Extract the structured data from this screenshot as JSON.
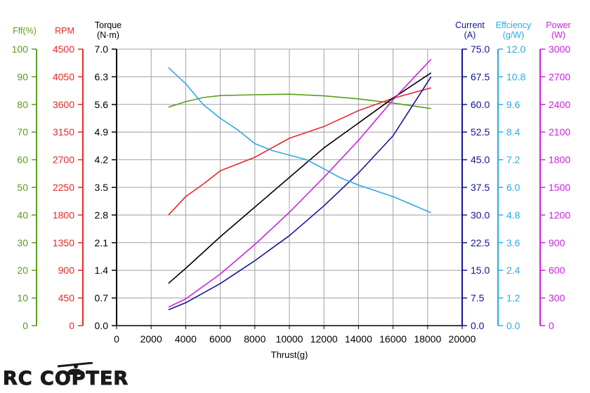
{
  "chart_data": {
    "type": "line",
    "title": "",
    "xlabel": "Thrust(g)",
    "xlim": [
      0,
      20000
    ],
    "x_ticks": [
      "0",
      "2000",
      "4000",
      "6000",
      "8000",
      "10000",
      "12000",
      "14000",
      "16000",
      "18000",
      "20000"
    ],
    "grid": true,
    "axes": [
      {
        "id": "eff_pct",
        "label_lines": [
          "Fff(%)"
        ],
        "color": "#5a9e1a",
        "side": "left",
        "min": 0,
        "max": 100,
        "ticks": [
          "0",
          "10",
          "20",
          "30",
          "40",
          "50",
          "60",
          "70",
          "80",
          "90",
          "100"
        ]
      },
      {
        "id": "rpm",
        "label_lines": [
          "RPM"
        ],
        "color": "#e8282c",
        "side": "left",
        "min": 0,
        "max": 4500,
        "ticks": [
          "0",
          "450",
          "900",
          "1350",
          "1800",
          "2250",
          "2700",
          "3150",
          "3600",
          "4050",
          "4500"
        ]
      },
      {
        "id": "torque",
        "label_lines": [
          "Torque",
          "(N·m)"
        ],
        "color": "#000000",
        "side": "left",
        "min": 0,
        "max": 7,
        "ticks": [
          "0.0",
          "0.7",
          "1.4",
          "2.1",
          "2.8",
          "3.5",
          "4.2",
          "4.9",
          "5.6",
          "6.3",
          "7.0"
        ]
      },
      {
        "id": "current",
        "label_lines": [
          "Current",
          "(A)"
        ],
        "color": "#13139a",
        "side": "right",
        "min": 0,
        "max": 75,
        "ticks": [
          "0.0",
          "7.5",
          "15.0",
          "22.5",
          "30.0",
          "37.5",
          "45.0",
          "52.5",
          "60.0",
          "67.5",
          "75.0"
        ]
      },
      {
        "id": "efficiency",
        "label_lines": [
          "Effciency",
          "(g/W)"
        ],
        "color": "#29abe2",
        "side": "right",
        "min": 0,
        "max": 12,
        "ticks": [
          "0.0",
          "1.2",
          "2.4",
          "3.6",
          "4.8",
          "6.0",
          "7.2",
          "8.4",
          "9.6",
          "10.8",
          "12.0"
        ]
      },
      {
        "id": "power",
        "label_lines": [
          "Power",
          "(W)"
        ],
        "color": "#cc22dd",
        "side": "right",
        "min": 0,
        "max": 3000,
        "ticks": [
          "0",
          "300",
          "600",
          "900",
          "1200",
          "1500",
          "1800",
          "2100",
          "2400",
          "2700",
          "3000"
        ]
      }
    ],
    "series": [
      {
        "axis": "eff_pct",
        "color": "#5a9e1a",
        "x": [
          3000,
          4000,
          5000,
          6000,
          8000,
          10000,
          12000,
          14000,
          16000,
          18200
        ],
        "y": [
          79,
          81,
          82.5,
          83.2,
          83.5,
          83.7,
          83.1,
          82,
          80.5,
          78.5
        ]
      },
      {
        "axis": "rpm",
        "color": "#e8282c",
        "x": [
          3000,
          4000,
          5000,
          6000,
          8000,
          10000,
          12000,
          14000,
          16000,
          18200
        ],
        "y": [
          1800,
          2100,
          2300,
          2520,
          2740,
          3050,
          3240,
          3500,
          3700,
          3870
        ]
      },
      {
        "axis": "torque",
        "color": "#000000",
        "x": [
          3000,
          4000,
          6000,
          8000,
          10000,
          12000,
          14000,
          16000,
          18200
        ],
        "y": [
          1.07,
          1.45,
          2.25,
          3.0,
          3.75,
          4.5,
          5.13,
          5.76,
          6.4
        ]
      },
      {
        "axis": "current",
        "color": "#13139a",
        "x": [
          3000,
          4000,
          6000,
          8000,
          10000,
          12000,
          14000,
          16000,
          18200
        ],
        "y": [
          4.3,
          6.2,
          11.4,
          17.6,
          24.4,
          32.5,
          41.4,
          51.5,
          67.5
        ]
      },
      {
        "axis": "efficiency",
        "color": "#29abe2",
        "x": [
          3000,
          4000,
          5000,
          6000,
          7000,
          8000,
          9000,
          10000,
          11000,
          12000,
          13000,
          14000,
          16000,
          18200
        ],
        "y": [
          11.2,
          10.5,
          9.6,
          9.0,
          8.5,
          7.9,
          7.6,
          7.4,
          7.2,
          6.8,
          6.4,
          6.1,
          5.6,
          4.9
        ]
      },
      {
        "axis": "power",
        "color": "#cc22dd",
        "x": [
          3000,
          4000,
          6000,
          8000,
          10000,
          12000,
          14000,
          16000,
          18200
        ],
        "y": [
          200,
          290,
          560,
          880,
          1230,
          1610,
          2010,
          2450,
          2890
        ]
      }
    ]
  },
  "logo": {
    "text": "RC COPTER"
  }
}
